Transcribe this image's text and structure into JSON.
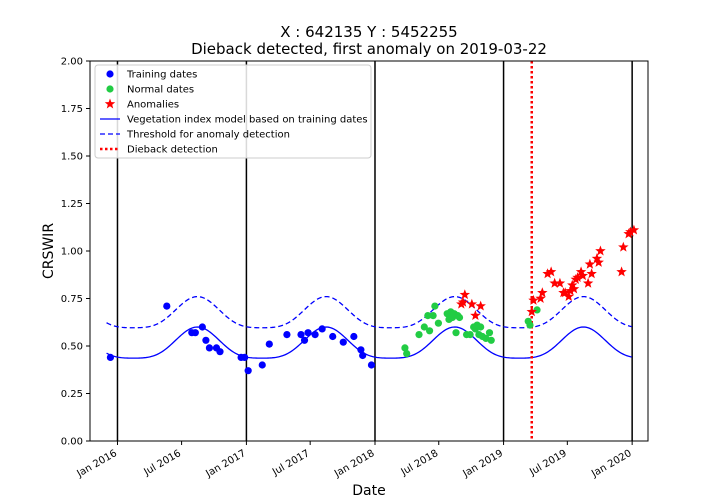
{
  "chart_data": {
    "type": "scatter",
    "title_line1": "X : 642135    Y : 5452255",
    "title_line2": "Dieback detected, first anomaly on 2019-03-22",
    "xlabel": "Date",
    "ylabel": "CRSWIR",
    "ylim": [
      0.0,
      2.0
    ],
    "yticks": [
      "0.00",
      "0.25",
      "0.50",
      "0.75",
      "1.00",
      "1.25",
      "1.50",
      "1.75",
      "2.00"
    ],
    "xlim": [
      "2015-10-15",
      "2020-02-15"
    ],
    "xticks": [
      {
        "date": "2016-01-01",
        "label": "Jan 2016"
      },
      {
        "date": "2016-07-01",
        "label": "Jul 2016"
      },
      {
        "date": "2017-01-01",
        "label": "Jan 2017"
      },
      {
        "date": "2017-07-01",
        "label": "Jul 2017"
      },
      {
        "date": "2018-01-01",
        "label": "Jan 2018"
      },
      {
        "date": "2018-07-01",
        "label": "Jul 2018"
      },
      {
        "date": "2019-01-01",
        "label": "Jan 2019"
      },
      {
        "date": "2019-07-01",
        "label": "Jul 2019"
      },
      {
        "date": "2020-01-01",
        "label": "Jan 2020"
      }
    ],
    "year_lines": [
      "2016-01-01",
      "2017-01-01",
      "2018-01-01",
      "2019-01-01",
      "2020-01-01"
    ],
    "dieback_date": "2019-03-22",
    "legend": {
      "position": "upper-left",
      "items": [
        {
          "key": "training",
          "label": "Training dates"
        },
        {
          "key": "normal",
          "label": "Normal dates"
        },
        {
          "key": "anomaly",
          "label": "Anomalies"
        },
        {
          "key": "model",
          "label": "Vegetation index model based on training dates"
        },
        {
          "key": "threshold",
          "label": "Threshold for anomaly detection"
        },
        {
          "key": "dieback",
          "label": "Dieback detection"
        }
      ]
    },
    "colors": {
      "training": "#0000ff",
      "normal": "#22cc44",
      "anomaly": "#ff0000",
      "model": "#0000ff",
      "threshold": "#0000ff",
      "dieback": "#ff0000",
      "year_line": "#000000"
    },
    "model": {
      "start": "2015-12-01",
      "end": "2019-12-31",
      "mean": 0.5,
      "amplitude": 0.1,
      "peak_date": "2016-08-15",
      "threshold_offset": 0.16
    },
    "series": [
      {
        "name": "Training dates",
        "key": "training",
        "points": [
          [
            "2015-12-12",
            0.44
          ],
          [
            "2016-05-20",
            0.71
          ],
          [
            "2016-07-30",
            0.57
          ],
          [
            "2016-08-09",
            0.57
          ],
          [
            "2016-08-29",
            0.6
          ],
          [
            "2016-09-08",
            0.53
          ],
          [
            "2016-09-18",
            0.49
          ],
          [
            "2016-10-08",
            0.49
          ],
          [
            "2016-10-18",
            0.47
          ],
          [
            "2016-12-17",
            0.44
          ],
          [
            "2016-12-27",
            0.44
          ],
          [
            "2017-01-06",
            0.37
          ],
          [
            "2017-02-15",
            0.4
          ],
          [
            "2017-03-07",
            0.51
          ],
          [
            "2017-04-26",
            0.56
          ],
          [
            "2017-06-05",
            0.56
          ],
          [
            "2017-06-15",
            0.53
          ],
          [
            "2017-06-25",
            0.57
          ],
          [
            "2017-07-15",
            0.56
          ],
          [
            "2017-08-04",
            0.59
          ],
          [
            "2017-09-03",
            0.55
          ],
          [
            "2017-10-03",
            0.52
          ],
          [
            "2017-11-02",
            0.55
          ],
          [
            "2017-11-22",
            0.48
          ],
          [
            "2017-11-27",
            0.45
          ],
          [
            "2017-12-22",
            0.4
          ]
        ]
      },
      {
        "name": "Normal dates",
        "key": "normal",
        "points": [
          [
            "2018-03-27",
            0.49
          ],
          [
            "2018-04-01",
            0.46
          ],
          [
            "2018-05-06",
            0.56
          ],
          [
            "2018-05-21",
            0.6
          ],
          [
            "2018-05-31",
            0.66
          ],
          [
            "2018-06-05",
            0.58
          ],
          [
            "2018-06-15",
            0.66
          ],
          [
            "2018-06-20",
            0.71
          ],
          [
            "2018-06-30",
            0.62
          ],
          [
            "2018-07-25",
            0.67
          ],
          [
            "2018-07-30",
            0.64
          ],
          [
            "2018-08-04",
            0.68
          ],
          [
            "2018-08-09",
            0.65
          ],
          [
            "2018-08-14",
            0.67
          ],
          [
            "2018-08-24",
            0.66
          ],
          [
            "2018-08-19",
            0.57
          ],
          [
            "2018-08-29",
            0.65
          ],
          [
            "2018-09-18",
            0.56
          ],
          [
            "2018-09-28",
            0.56
          ],
          [
            "2018-10-08",
            0.6
          ],
          [
            "2018-10-13",
            0.59
          ],
          [
            "2018-10-18",
            0.61
          ],
          [
            "2018-10-23",
            0.56
          ],
          [
            "2018-10-28",
            0.6
          ],
          [
            "2018-11-02",
            0.55
          ],
          [
            "2018-11-12",
            0.54
          ],
          [
            "2018-11-27",
            0.53
          ],
          [
            "2018-11-22",
            0.57
          ],
          [
            "2019-03-12",
            0.63
          ],
          [
            "2019-03-17",
            0.61
          ],
          [
            "2019-04-06",
            0.69
          ]
        ]
      },
      {
        "name": "Anomalies",
        "key": "anomaly",
        "points": [
          [
            "2018-09-03",
            0.72
          ],
          [
            "2018-09-08",
            0.73
          ],
          [
            "2018-09-13",
            0.77
          ],
          [
            "2018-10-03",
            0.72
          ],
          [
            "2018-10-13",
            0.66
          ],
          [
            "2018-10-28",
            0.71
          ],
          [
            "2019-03-22",
            0.68
          ],
          [
            "2019-03-27",
            0.74
          ],
          [
            "2019-04-16",
            0.75
          ],
          [
            "2019-04-21",
            0.78
          ],
          [
            "2019-05-06",
            0.88
          ],
          [
            "2019-05-16",
            0.89
          ],
          [
            "2019-05-26",
            0.83
          ],
          [
            "2019-06-10",
            0.83
          ],
          [
            "2019-06-20",
            0.78
          ],
          [
            "2019-06-25",
            0.78
          ],
          [
            "2019-07-05",
            0.76
          ],
          [
            "2019-07-10",
            0.79
          ],
          [
            "2019-07-15",
            0.82
          ],
          [
            "2019-07-20",
            0.8
          ],
          [
            "2019-07-25",
            0.85
          ],
          [
            "2019-07-30",
            0.86
          ],
          [
            "2019-08-09",
            0.89
          ],
          [
            "2019-08-14",
            0.87
          ],
          [
            "2019-08-29",
            0.83
          ],
          [
            "2019-09-08",
            0.88
          ],
          [
            "2019-09-03",
            0.93
          ],
          [
            "2019-09-28",
            0.94
          ],
          [
            "2019-09-23",
            0.96
          ],
          [
            "2019-10-03",
            1.0
          ],
          [
            "2019-12-02",
            0.89
          ],
          [
            "2019-12-07",
            1.02
          ],
          [
            "2019-12-22",
            1.09
          ],
          [
            "2019-12-27",
            1.1
          ],
          [
            "2020-01-06",
            1.11
          ]
        ]
      }
    ]
  }
}
